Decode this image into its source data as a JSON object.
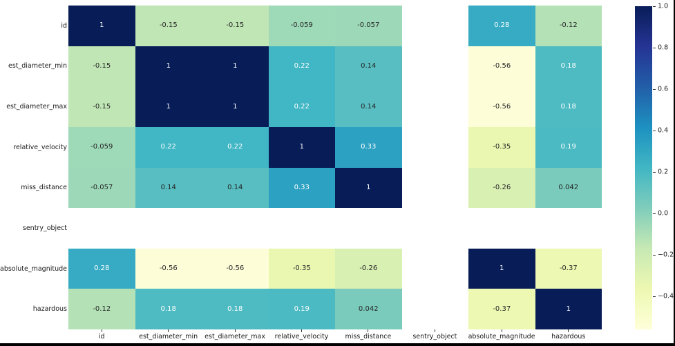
{
  "figure": {
    "background": "#ffffff",
    "frame_color": "#000000"
  },
  "chart_data": {
    "type": "heatmap",
    "title": "",
    "labels": [
      "id",
      "est_diameter_min",
      "est_diameter_max",
      "relative_velocity",
      "miss_distance",
      "sentry_object",
      "absolute_magnitude",
      "hazardous"
    ],
    "values": [
      [
        1,
        -0.15,
        -0.15,
        -0.059,
        -0.057,
        null,
        0.28,
        -0.12
      ],
      [
        -0.15,
        1,
        1,
        0.22,
        0.14,
        null,
        -0.56,
        0.18
      ],
      [
        -0.15,
        1,
        1,
        0.22,
        0.14,
        null,
        -0.56,
        0.18
      ],
      [
        -0.059,
        0.22,
        0.22,
        1,
        0.33,
        null,
        -0.35,
        0.19
      ],
      [
        -0.057,
        0.14,
        0.14,
        0.33,
        1,
        null,
        -0.26,
        0.042
      ],
      [
        null,
        null,
        null,
        null,
        null,
        null,
        null,
        null
      ],
      [
        0.28,
        -0.56,
        -0.56,
        -0.35,
        -0.26,
        null,
        1,
        -0.37
      ],
      [
        -0.12,
        0.18,
        0.18,
        0.19,
        0.042,
        null,
        -0.37,
        1
      ]
    ],
    "annotations": [
      [
        "1",
        "-0.15",
        "-0.15",
        "-0.059",
        "-0.057",
        "",
        "0.28",
        "-0.12"
      ],
      [
        "-0.15",
        "1",
        "1",
        "0.22",
        "0.14",
        "",
        "-0.56",
        "0.18"
      ],
      [
        "-0.15",
        "1",
        "1",
        "0.22",
        "0.14",
        "",
        "-0.56",
        "0.18"
      ],
      [
        "-0.059",
        "0.22",
        "0.22",
        "1",
        "0.33",
        "",
        "-0.35",
        "0.19"
      ],
      [
        "-0.057",
        "0.14",
        "0.14",
        "0.33",
        "1",
        "",
        "-0.26",
        "0.042"
      ],
      [
        "",
        "",
        "",
        "",
        "",
        "",
        "",
        ""
      ],
      [
        "0.28",
        "-0.56",
        "-0.56",
        "-0.35",
        "-0.26",
        "",
        "1",
        "-0.37"
      ],
      [
        "-0.12",
        "0.18",
        "0.18",
        "0.19",
        "0.042",
        "",
        "-0.37",
        "1"
      ]
    ],
    "palette": {
      "1": {
        "bg": "#081d58",
        "fg": "#ffffff"
      },
      "0.33": {
        "bg": "#2da1c2",
        "fg": "#ffffff"
      },
      "0.28": {
        "bg": "#36abc3",
        "fg": "#ffffff"
      },
      "0.22": {
        "bg": "#41b6c4",
        "fg": "#ffffff"
      },
      "0.19": {
        "bg": "#4bbac3",
        "fg": "#ffffff"
      },
      "0.18": {
        "bg": "#4ebbc2",
        "fg": "#ffffff"
      },
      "0.14": {
        "bg": "#58bec1",
        "fg": "#262626"
      },
      "0.042": {
        "bg": "#7acbbc",
        "fg": "#262626"
      },
      "-0.057": {
        "bg": "#9dd9b8",
        "fg": "#262626"
      },
      "-0.059": {
        "bg": "#9ed9b8",
        "fg": "#262626"
      },
      "-0.12": {
        "bg": "#b4e2b6",
        "fg": "#262626"
      },
      "-0.15": {
        "bg": "#c0e6b5",
        "fg": "#262626"
      },
      "-0.26": {
        "bg": "#d9f0b3",
        "fg": "#262626"
      },
      "-0.35": {
        "bg": "#eaf7b1",
        "fg": "#262626"
      },
      "-0.37": {
        "bg": "#edf8b2",
        "fg": "#262626"
      },
      "-0.56": {
        "bg": "#fdfed8",
        "fg": "#262626"
      },
      "": {
        "bg": "#ffffff",
        "fg": "#262626"
      }
    },
    "colormap": {
      "name": "YlGnBu",
      "stops": [
        "#ffffd9",
        "#edf8b1",
        "#c7e9b4",
        "#7fcdbb",
        "#41b6c4",
        "#1d91c0",
        "#225ea8",
        "#253494",
        "#081d58"
      ]
    },
    "scale": {
      "vmin": -0.56,
      "vmax": 1.0
    },
    "colorbar": {
      "position": "right",
      "ticks": [
        {
          "value": 1.0,
          "label": "1.0"
        },
        {
          "value": 0.8,
          "label": "0.8"
        },
        {
          "value": 0.6,
          "label": "0.6"
        },
        {
          "value": 0.4,
          "label": "0.4"
        },
        {
          "value": 0.2,
          "label": "0.2"
        },
        {
          "value": 0.0,
          "label": "0.0"
        },
        {
          "value": -0.2,
          "label": "−0.2"
        },
        {
          "value": -0.4,
          "label": "−0.4"
        }
      ]
    },
    "grid": false
  }
}
